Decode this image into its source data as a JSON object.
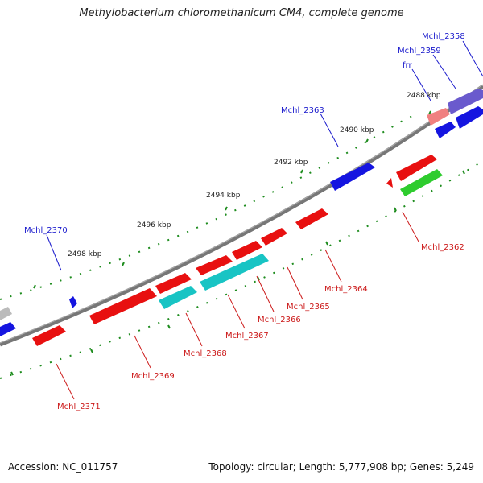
{
  "title": "Methylobacterium chloromethanicum CM4, complete genome",
  "footer": {
    "accession": "Accession: NC_011757",
    "topology": "Topology: circular; Length: 5,777,908 bp; Genes: 5,249"
  },
  "colors": {
    "backbone": "#777777",
    "tick": "#1e8c1e",
    "blue": "#1515e0",
    "red": "#e81010",
    "cyan": "#18c4c4",
    "green": "#2ecc2e",
    "pink": "#f08080",
    "purple": "#6a5acd",
    "gray": "#bbbbbb",
    "label_blue": "#1a1acc",
    "label_red": "#cc1a1a"
  },
  "kbp_labels": [
    "2488 kbp",
    "2490 kbp",
    "2492 kbp",
    "2494 kbp",
    "2496 kbp",
    "2498 kbp"
  ],
  "gene_labels_top": [
    "Mchl_2358",
    "Mchl_2359",
    "frr",
    "Mchl_2363",
    "Mchl_2370"
  ],
  "gene_labels_bottom": [
    "Mchl_2362",
    "Mchl_2364",
    "Mchl_2365",
    "Mchl_2366",
    "Mchl_2367",
    "Mchl_2368",
    "Mchl_2369",
    "Mchl_2371"
  ]
}
